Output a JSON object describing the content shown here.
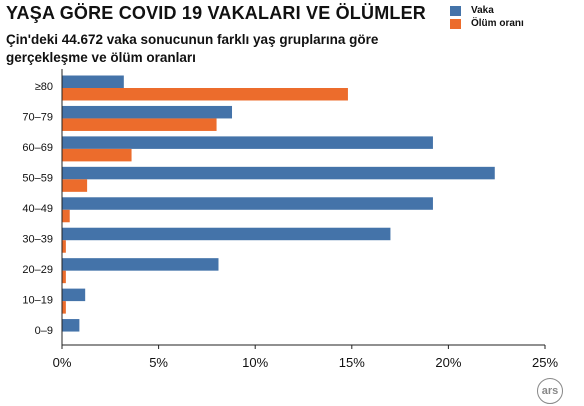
{
  "chart_data": {
    "type": "bar",
    "orientation": "horizontal",
    "title": "YAŞA GÖRE COVID 19 VAKALARI VE ÖLÜMLER",
    "subtitle": "Çin'deki 44.672 vaka sonucunun farklı yaş gruplarına göre gerçekleşme ve ölüm oranları",
    "categories": [
      "≥80",
      "70–79",
      "60–69",
      "50–59",
      "40–49",
      "30–39",
      "20–29",
      "10–19",
      "0–9"
    ],
    "series": [
      {
        "name": "Vaka",
        "color": "#4473a9",
        "values": [
          3.2,
          8.8,
          19.2,
          22.4,
          19.2,
          17.0,
          8.1,
          1.2,
          0.9
        ]
      },
      {
        "name": "Ölüm oranı",
        "color": "#ec6c2c",
        "values": [
          14.8,
          8.0,
          3.6,
          1.3,
          0.4,
          0.2,
          0.2,
          0.2,
          0.0
        ]
      }
    ],
    "xlim": [
      0,
      25
    ],
    "xticks": [
      "0%",
      "5%",
      "10%",
      "15%",
      "20%",
      "25%"
    ],
    "xtick_values": [
      0,
      5,
      10,
      15,
      20,
      25
    ],
    "grid": false,
    "legend_position": "top-right"
  },
  "brand": {
    "logo_text": "ars"
  }
}
